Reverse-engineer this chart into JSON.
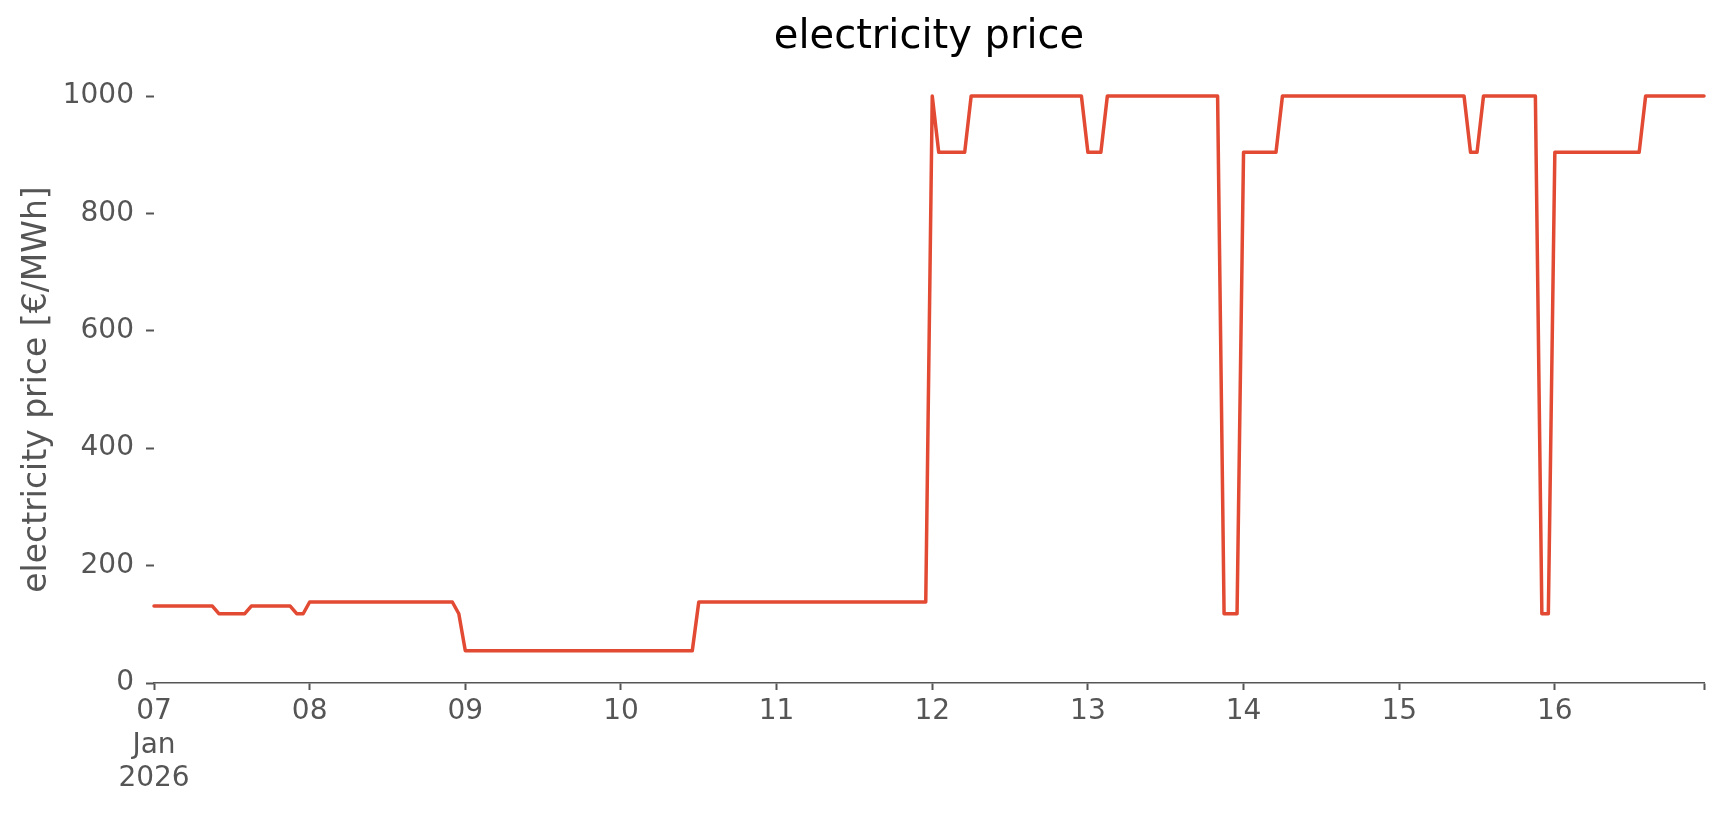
{
  "chart_data": {
    "type": "line",
    "title": "electricity price",
    "ylabel": "electricity price [€/MWh]",
    "x": [
      "2026-01-07T00:00",
      "2026-01-07T09:00",
      "2026-01-07T10:00",
      "2026-01-07T14:00",
      "2026-01-07T15:00",
      "2026-01-07T21:00",
      "2026-01-07T22:00",
      "2026-01-07T23:00",
      "2026-01-08T00:00",
      "2026-01-08T22:00",
      "2026-01-08T23:00",
      "2026-01-09T00:00",
      "2026-01-10T11:00",
      "2026-01-10T12:00",
      "2026-01-11T23:00",
      "2026-01-12T00:00",
      "2026-01-12T01:00",
      "2026-01-12T05:00",
      "2026-01-12T06:00",
      "2026-01-12T23:00",
      "2026-01-13T00:00",
      "2026-01-13T02:00",
      "2026-01-13T03:00",
      "2026-01-13T20:00",
      "2026-01-13T21:00",
      "2026-01-13T23:00",
      "2026-01-14T00:00",
      "2026-01-14T05:00",
      "2026-01-14T06:00",
      "2026-01-15T10:00",
      "2026-01-15T11:00",
      "2026-01-15T12:00",
      "2026-01-15T13:00",
      "2026-01-15T21:00",
      "2026-01-15T22:00",
      "2026-01-15T23:00",
      "2026-01-16T00:00",
      "2026-01-16T13:00",
      "2026-01-16T14:00",
      "2026-01-16T23:00"
    ],
    "series": [
      {
        "color": "#e24a33",
        "values": [
          131,
          131,
          118,
          118,
          131,
          131,
          118,
          118,
          138,
          138,
          118,
          55,
          55,
          138,
          138,
          1000,
          904,
          904,
          1000,
          1000,
          904,
          904,
          1000,
          1000,
          118,
          118,
          904,
          904,
          1000,
          1000,
          904,
          904,
          1000,
          1000,
          118,
          118,
          904,
          904,
          1000,
          1000
        ]
      }
    ],
    "xlim": [
      "2026-01-07T00:00",
      "2026-01-16T23:00"
    ],
    "xticks": [
      {
        "value": "2026-01-07",
        "label": "07\nJan\n2026"
      },
      {
        "value": "2026-01-08",
        "label": "08"
      },
      {
        "value": "2026-01-09",
        "label": "09"
      },
      {
        "value": "2026-01-10",
        "label": "10"
      },
      {
        "value": "2026-01-11",
        "label": "11"
      },
      {
        "value": "2026-01-12",
        "label": "12"
      },
      {
        "value": "2026-01-13",
        "label": "13"
      },
      {
        "value": "2026-01-14",
        "label": "14"
      },
      {
        "value": "2026-01-15",
        "label": "15"
      },
      {
        "value": "2026-01-16",
        "label": "16"
      },
      {
        "value": "2026-01-16T23:00",
        "label": null
      }
    ],
    "ylim": [
      0,
      1000
    ],
    "yticks": [
      0,
      200,
      400,
      600,
      800,
      1000
    ],
    "marker": "none"
  }
}
